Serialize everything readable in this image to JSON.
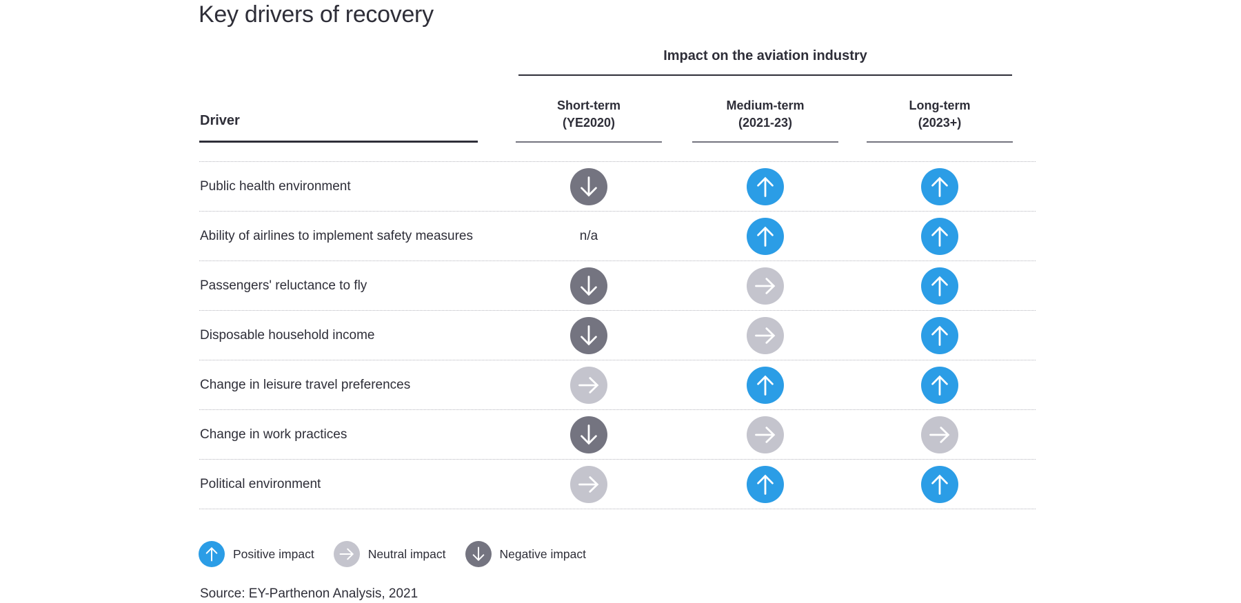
{
  "title": "Key drivers of recovery",
  "table": {
    "group_header": "Impact on the aviation industry",
    "row_header": "Driver",
    "na_label": "n/a",
    "columns": [
      {
        "label": "Short-term",
        "sublabel": "(YE2020)"
      },
      {
        "label": "Medium-term",
        "sublabel": "(2021-23)"
      },
      {
        "label": "Long-term",
        "sublabel": "(2023+)"
      }
    ],
    "rows": [
      {
        "driver": "Public health environment",
        "impacts": [
          "negative",
          "positive",
          "positive"
        ]
      },
      {
        "driver": "Ability of airlines to implement safety measures",
        "impacts": [
          "n/a",
          "positive",
          "positive"
        ]
      },
      {
        "driver": "Passengers' reluctance to fly",
        "impacts": [
          "negative",
          "neutral",
          "positive"
        ]
      },
      {
        "driver": "Disposable household income",
        "impacts": [
          "negative",
          "neutral",
          "positive"
        ]
      },
      {
        "driver": "Change in leisure travel preferences",
        "impacts": [
          "neutral",
          "positive",
          "positive"
        ]
      },
      {
        "driver": "Change in work practices",
        "impacts": [
          "negative",
          "neutral",
          "neutral"
        ]
      },
      {
        "driver": "Political environment",
        "impacts": [
          "neutral",
          "positive",
          "positive"
        ]
      }
    ]
  },
  "legend": {
    "items": [
      {
        "type": "positive",
        "label": "Positive impact"
      },
      {
        "type": "neutral",
        "label": "Neutral impact"
      },
      {
        "type": "negative",
        "label": "Negative impact"
      }
    ]
  },
  "source": "Source: EY-Parthenon Analysis, 2021",
  "colors": {
    "positive": "#2B9DE6",
    "neutral": "#C4C4CD",
    "negative": "#747480",
    "text": "#2E2E38",
    "separator": "#B4B4BC"
  },
  "icons": {
    "positive": "up-arrow-circle",
    "neutral": "right-arrow-circle",
    "negative": "down-arrow-circle"
  },
  "chart_data": {
    "type": "table",
    "title": "Key drivers of recovery",
    "group_header": "Impact on the aviation industry",
    "row_header": "Driver",
    "columns": [
      "Short-term (YE2020)",
      "Medium-term (2021-23)",
      "Long-term (2023+)"
    ],
    "rows": [
      {
        "driver": "Public health environment",
        "short_term": "negative",
        "medium_term": "positive",
        "long_term": "positive"
      },
      {
        "driver": "Ability of airlines to implement safety measures",
        "short_term": "n/a",
        "medium_term": "positive",
        "long_term": "positive"
      },
      {
        "driver": "Passengers' reluctance to fly",
        "short_term": "negative",
        "medium_term": "neutral",
        "long_term": "positive"
      },
      {
        "driver": "Disposable household income",
        "short_term": "negative",
        "medium_term": "neutral",
        "long_term": "positive"
      },
      {
        "driver": "Change in leisure travel preferences",
        "short_term": "neutral",
        "medium_term": "positive",
        "long_term": "positive"
      },
      {
        "driver": "Change in work practices",
        "short_term": "negative",
        "medium_term": "neutral",
        "long_term": "neutral"
      },
      {
        "driver": "Political environment",
        "short_term": "neutral",
        "medium_term": "positive",
        "long_term": "positive"
      }
    ],
    "legend": [
      "Positive impact",
      "Neutral impact",
      "Negative impact"
    ],
    "source": "Source: EY-Parthenon Analysis, 2021"
  }
}
